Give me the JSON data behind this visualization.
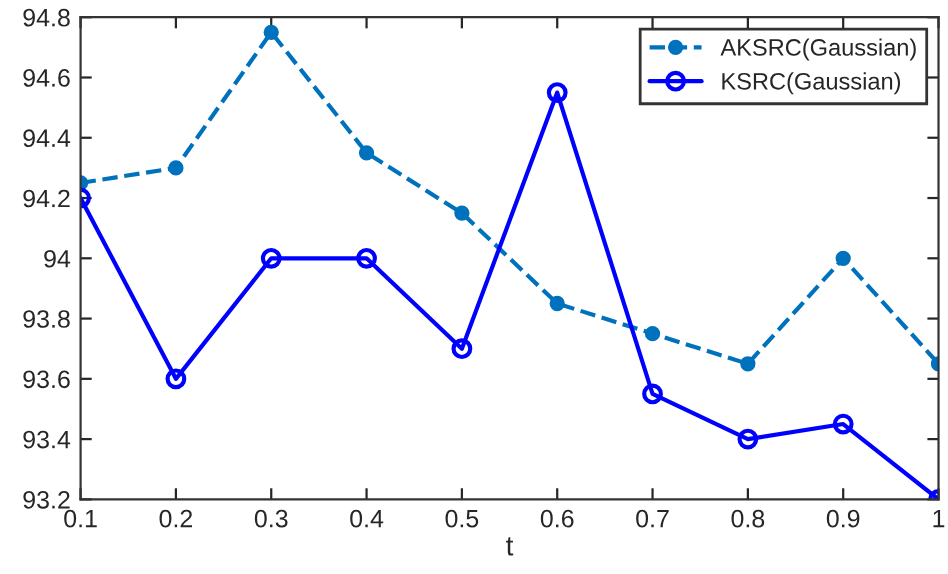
{
  "chart_data": {
    "type": "line",
    "xlabel": "t",
    "x": [
      0.1,
      0.2,
      0.3,
      0.4,
      0.5,
      0.6,
      0.7,
      0.8,
      0.9,
      1
    ],
    "series": [
      {
        "name": "AKSRC(Gaussian)",
        "color": "#0072bd",
        "line_style": "dashed",
        "marker": "circle",
        "values": [
          94.25,
          94.3,
          94.75,
          94.35,
          94.15,
          93.85,
          93.75,
          93.65,
          94.0,
          93.65
        ]
      },
      {
        "name": "KSRC(Gaussian)",
        "color": "#0000ff",
        "line_style": "solid",
        "marker": "circle",
        "values": [
          94.2,
          93.6,
          94.0,
          94.0,
          93.7,
          94.55,
          93.55,
          93.4,
          93.45,
          93.2
        ]
      }
    ],
    "xlim": [
      0.1,
      1
    ],
    "xticks": [
      0.1,
      0.2,
      0.3,
      0.4,
      0.5,
      0.6,
      0.7,
      0.8,
      0.9,
      1
    ],
    "ylim": [
      93.2,
      94.8
    ],
    "yticks": [
      93.2,
      93.4,
      93.6,
      93.8,
      94,
      94.2,
      94.4,
      94.6,
      94.8
    ],
    "grid": false,
    "legend": "top right"
  }
}
